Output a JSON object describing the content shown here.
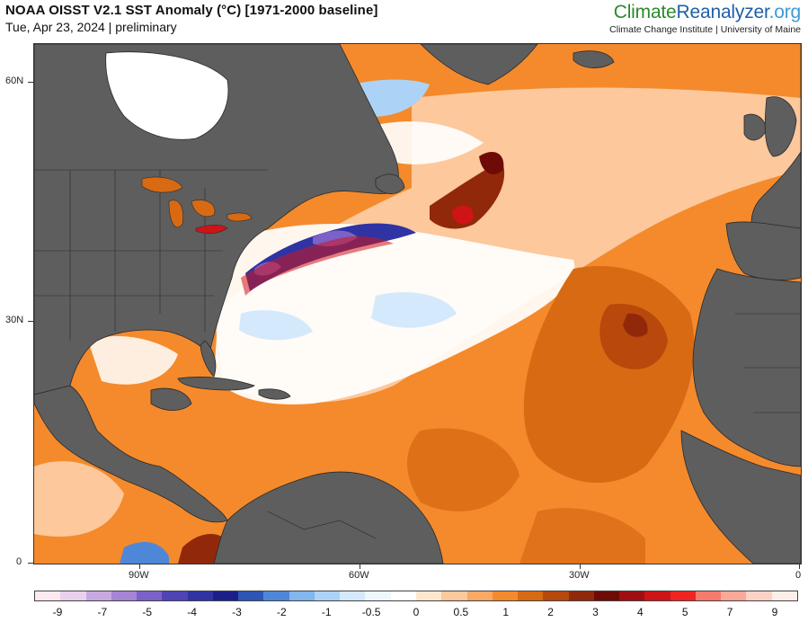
{
  "header": {
    "title": "NOAA OISST V2.1 SST Anomaly (°C) [1971-2000 baseline]",
    "subtitle": "Tue, Apr 23, 2024 | preliminary"
  },
  "brand": {
    "logo_part1": "Climate",
    "logo_part2": "Reanalyzer",
    "logo_part3": ".org",
    "org_line": "Climate Change Institute | University of Maine"
  },
  "axes": {
    "lat_labels": [
      "60N",
      "30N",
      "0"
    ],
    "lon_labels": [
      "90W",
      "60W",
      "30W",
      "0"
    ]
  },
  "colorbar": {
    "colors": [
      "#fde9ef",
      "#e8d1ec",
      "#c8a8e0",
      "#a585d6",
      "#7c62c8",
      "#4f44b6",
      "#2f33a4",
      "#1b1f8a",
      "#2d56b4",
      "#4f87d8",
      "#82b6ef",
      "#acd3f6",
      "#d4e9fb",
      "#eef6fe",
      "#ffffff",
      "#ffe7cf",
      "#fcc89c",
      "#f9a965",
      "#f48a2c",
      "#d86a14",
      "#b8480b",
      "#92280a",
      "#6e0b06",
      "#a00e12",
      "#cf1418",
      "#f2241f",
      "#f77a6a",
      "#faa89a",
      "#fcd2c6",
      "#feeee8"
    ],
    "tick_labels": [
      "-9",
      "-7",
      "-5",
      "-4",
      "-3",
      "-2",
      "-1",
      "-0.5",
      "0",
      "0.5",
      "1",
      "2",
      "3",
      "4",
      "5",
      "7",
      "9"
    ]
  },
  "palette": {
    "land": "#5e5e5e",
    "land_border": "#2a2a2a",
    "ocean_base": "#f48a2c",
    "warm_light": "#fcc89c",
    "warm_mid": "#f9a965",
    "warm_dark": "#d86a14",
    "warm_deep": "#b8480b",
    "hot": "#92280a",
    "extreme": "#cf1418",
    "neutral": "#ffffff",
    "cool_light": "#d4e9fb",
    "cool_mid": "#82b6ef",
    "cool_dark": "#2f33a4",
    "cold_core": "#7c62c8"
  }
}
